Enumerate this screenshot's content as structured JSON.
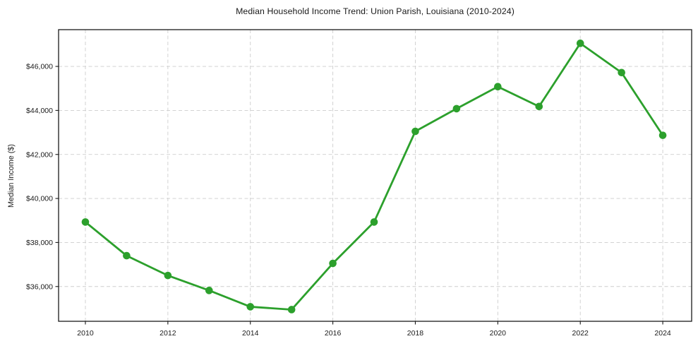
{
  "title": "Median Household Income Trend: Union Parish, Louisiana (2010-2024)",
  "y_axis_label": "Median Income ($)",
  "colors": {
    "line": "#2ca02c",
    "marker": "#2ca02c",
    "grid": "#cdcdcd",
    "axis": "#1a1a1a",
    "text": "#1a1a1a",
    "background": "#ffffff"
  },
  "chart_data": {
    "type": "line",
    "title": "Median Household Income Trend: Union Parish, Louisiana (2010-2024)",
    "xlabel": "",
    "ylabel": "Median Income ($)",
    "x": [
      2010,
      2011,
      2012,
      2013,
      2014,
      2015,
      2016,
      2017,
      2018,
      2019,
      2020,
      2021,
      2022,
      2023,
      2024
    ],
    "values": [
      38930,
      37400,
      36500,
      35820,
      35080,
      34950,
      37050,
      38930,
      43050,
      44080,
      45080,
      44180,
      47050,
      45720,
      42870
    ],
    "xlim": [
      2009.35,
      2024.7
    ],
    "ylim": [
      34420,
      47670
    ],
    "x_tick_values": [
      2010,
      2012,
      2014,
      2016,
      2018,
      2020,
      2022,
      2024
    ],
    "x_tick_labels": [
      "2010",
      "2012",
      "2014",
      "2016",
      "2018",
      "2020",
      "2022",
      "2024"
    ],
    "y_tick_values": [
      36000,
      38000,
      40000,
      42000,
      44000,
      46000
    ],
    "y_tick_labels": [
      "$36,000",
      "$38,000",
      "$40,000",
      "$42,000",
      "$44,000",
      "$46,000"
    ],
    "grid": "dashed-both-axes",
    "legend": "none",
    "marker": "circle"
  }
}
